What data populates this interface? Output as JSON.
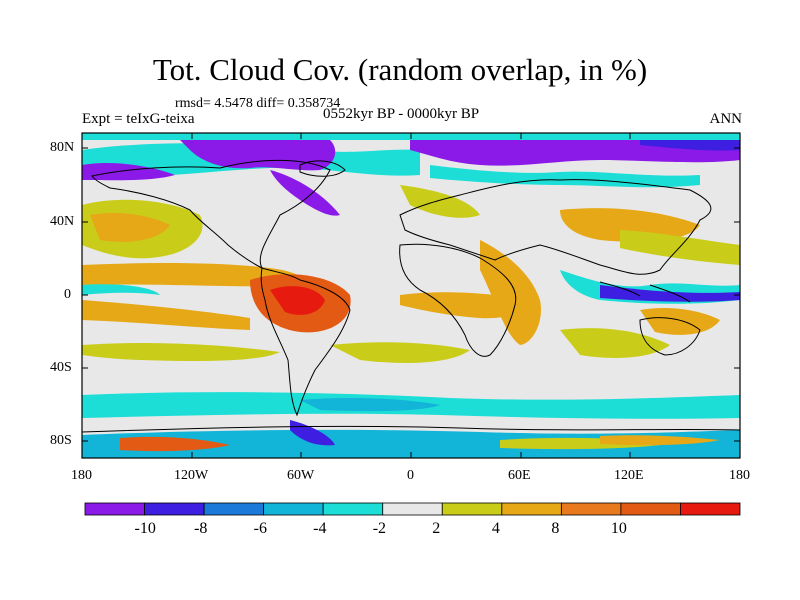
{
  "title": "Tot. Cloud Cov. (random overlap, in %)",
  "stats": "rmsd= 4.5478  diff= 0.358734",
  "experiment": "Expt = teIxG-teixa",
  "period": "0552kyr BP - 0000kyr BP",
  "season": "ANN",
  "lat_ticks": [
    "80N",
    "40N",
    "0",
    "40S",
    "80S"
  ],
  "lon_ticks": [
    "180",
    "120W",
    "60W",
    "0",
    "60E",
    "120E",
    "180"
  ],
  "colorbar": {
    "labels": [
      "-10",
      "-8",
      "-6",
      "-4",
      "-2",
      "2",
      "4",
      "8",
      "10"
    ],
    "colors": [
      "#8b1ae8",
      "#3e1ee0",
      "#1b7ad9",
      "#12b4d8",
      "#1cded6",
      "#e8e8e8",
      "#c9cd1a",
      "#e6a817",
      "#e8791c",
      "#e35a15",
      "#e61a0f"
    ]
  }
}
